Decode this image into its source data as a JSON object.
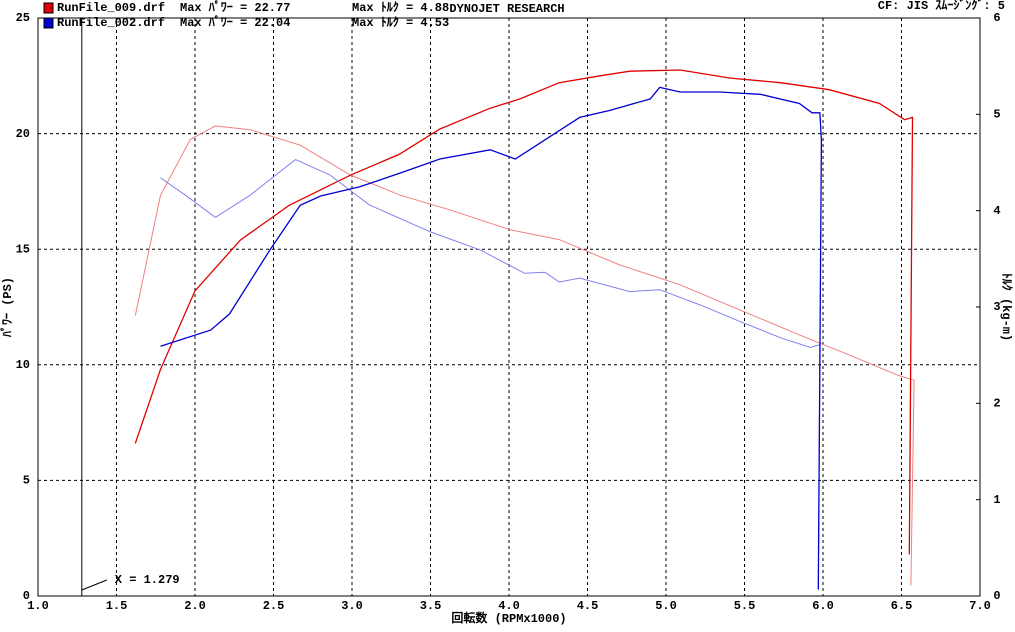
{
  "chart_data": {
    "type": "line",
    "title": "DYNOJET  RESEARCH",
    "info": "CF: JIS   ｽﾑｰｼﾞﾝｸﾞ: 5",
    "x_label": "回転数 (RPMx1000)",
    "y_label": "ﾊﾟﾜｰ (PS)",
    "y2_label": "ﾄﾙｸ (kg-m)",
    "xlim": [
      1,
      7
    ],
    "xticks": [
      {
        "value": 1,
        "label": "1.0"
      },
      1.5,
      {
        "value": 2,
        "label": "2.0"
      },
      2.5,
      {
        "value": 3,
        "label": "3.0"
      },
      3.5,
      {
        "value": 4,
        "label": "4.0"
      },
      4.5,
      {
        "value": 5,
        "label": "5.0"
      },
      5.5,
      {
        "value": 6,
        "label": "6.0"
      },
      6.5,
      {
        "value": 7,
        "label": "7.0"
      }
    ],
    "ylim": [
      0,
      25
    ],
    "yticks": [
      0,
      5,
      10,
      15,
      20,
      25
    ],
    "y2lim": [
      0,
      6
    ],
    "y2ticks": [
      0,
      1,
      2,
      3,
      4,
      5,
      6
    ],
    "grid": true,
    "cursor": {
      "value": 1.279,
      "label": "X = 1.279"
    },
    "series": [
      {
        "name": "RunFile_009.drf",
        "max_power_label": "Max ﾊﾟﾜｰ = 22.77",
        "max_torque_label": "Max ﾄﾙｸ = 4.88",
        "color": "#e00000",
        "torque_color": "#f08080",
        "power": {
          "x": [
            1.62,
            1.78,
            2.0,
            2.29,
            2.6,
            2.99,
            3.3,
            3.56,
            3.88,
            4.07,
            4.32,
            4.58,
            4.77,
            5.09,
            5.41,
            5.73,
            6.04,
            6.36,
            6.52,
            6.57,
            6.55
          ],
          "values": [
            6.6,
            9.8,
            13.2,
            15.4,
            16.9,
            18.2,
            19.1,
            20.2,
            21.1,
            21.5,
            22.2,
            22.5,
            22.7,
            22.75,
            22.4,
            22.2,
            21.9,
            21.3,
            20.6,
            20.7,
            1.8
          ]
        },
        "torque": {
          "axis": "y2",
          "x": [
            1.62,
            1.78,
            1.97,
            2.13,
            2.35,
            2.67,
            2.99,
            3.31,
            3.62,
            4.01,
            4.32,
            4.7,
            5.09,
            5.47,
            5.85,
            6.17,
            6.48,
            6.58,
            6.56
          ],
          "values": [
            2.91,
            4.16,
            4.74,
            4.88,
            4.84,
            4.68,
            4.37,
            4.16,
            4.01,
            3.8,
            3.7,
            3.44,
            3.23,
            2.97,
            2.71,
            2.5,
            2.29,
            2.24,
            0.11
          ]
        }
      },
      {
        "name": "RunFile_002.drf",
        "max_power_label": "Max ﾊﾟﾜｰ = 22.04",
        "max_torque_label": "Max ﾄﾙｸ = 4.53",
        "color": "#0000d0",
        "torque_color": "#8080f0",
        "power": {
          "x": [
            1.78,
            2.1,
            2.22,
            2.48,
            2.67,
            2.8,
            3.05,
            3.31,
            3.56,
            3.88,
            4.04,
            4.2,
            4.45,
            4.64,
            4.9,
            4.96,
            5.09,
            5.34,
            5.6,
            5.85,
            5.93,
            5.98,
            5.99,
            5.97
          ],
          "values": [
            10.8,
            11.5,
            12.2,
            15.0,
            16.9,
            17.3,
            17.7,
            18.3,
            18.9,
            19.3,
            18.9,
            19.6,
            20.7,
            21.0,
            21.5,
            22.0,
            21.8,
            21.8,
            21.7,
            21.3,
            20.9,
            20.9,
            19.7,
            0.3
          ]
        },
        "torque": {
          "axis": "y2",
          "x": [
            1.78,
            1.94,
            2.13,
            2.35,
            2.64,
            2.86,
            3.11,
            3.5,
            3.82,
            4.1,
            4.23,
            4.32,
            4.45,
            4.77,
            4.96,
            5.22,
            5.47,
            5.73,
            5.92,
            5.98,
            5.97
          ],
          "values": [
            4.34,
            4.16,
            3.93,
            4.16,
            4.53,
            4.37,
            4.06,
            3.78,
            3.59,
            3.35,
            3.36,
            3.26,
            3.3,
            3.16,
            3.18,
            3.02,
            2.85,
            2.68,
            2.58,
            2.61,
            0.06
          ]
        }
      }
    ]
  }
}
